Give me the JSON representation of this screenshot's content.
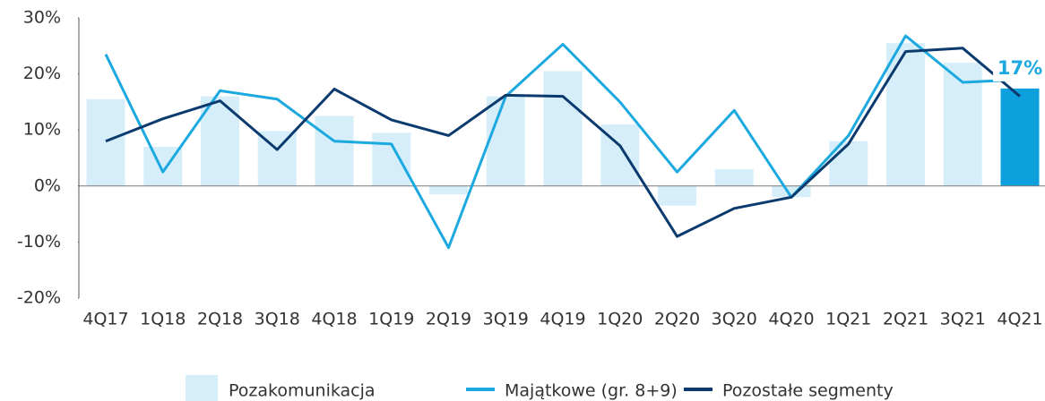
{
  "chart_data": {
    "type": "bar_line",
    "categories": [
      "4Q17",
      "1Q18",
      "2Q18",
      "3Q18",
      "4Q18",
      "1Q19",
      "2Q19",
      "3Q19",
      "4Q19",
      "1Q20",
      "2Q20",
      "3Q20",
      "4Q20",
      "1Q21",
      "2Q21",
      "3Q21",
      "4Q21"
    ],
    "series": [
      {
        "name": "Pozakomunikacja",
        "type": "bar",
        "colors": [
          "#d6eef9",
          "#d6eef9",
          "#d6eef9",
          "#d6eef9",
          "#d6eef9",
          "#d6eef9",
          "#d6eef9",
          "#d6eef9",
          "#d6eef9",
          "#d6eef9",
          "#d6eef9",
          "#d6eef9",
          "#d6eef9",
          "#d6eef9",
          "#d6eef9",
          "#d6eef9",
          "#0ea0dc"
        ],
        "color": "#d6eef9",
        "values": [
          15.5,
          7,
          16,
          9.8,
          12.5,
          9.5,
          -1.5,
          16,
          20.5,
          11,
          -3.5,
          3,
          -2,
          8,
          25.5,
          22,
          17.4
        ],
        "value_labels": [
          null,
          null,
          null,
          null,
          null,
          null,
          null,
          null,
          null,
          null,
          null,
          null,
          null,
          null,
          null,
          null,
          "17%"
        ],
        "value_label_color": "#1ba9e0"
      },
      {
        "name": "Majątkowe (gr. 8+9)",
        "type": "line",
        "color": "#1ba9e0",
        "values": [
          23.5,
          2.5,
          17,
          15.5,
          8,
          7.5,
          -11,
          16,
          25.3,
          15,
          2.5,
          13.5,
          -2,
          9,
          26.8,
          18.5,
          19
        ]
      },
      {
        "name": "Pozostałe segmenty",
        "type": "line",
        "color": "#0b3a6e",
        "values": [
          8,
          12,
          15.2,
          6.5,
          17.3,
          11.8,
          9,
          16.2,
          16,
          7.2,
          -9,
          -4,
          -2,
          7.5,
          24,
          24.6,
          16
        ]
      }
    ],
    "ylim": [
      -20,
      30
    ],
    "yticks": [
      {
        "value": -20,
        "label": "-20%"
      },
      {
        "value": -10,
        "label": "-10%"
      },
      {
        "value": 0,
        "label": "0%"
      },
      {
        "value": 10,
        "label": "10%"
      },
      {
        "value": 20,
        "label": "20%"
      },
      {
        "value": 30,
        "label": "30%"
      }
    ],
    "legend": "bottom"
  }
}
